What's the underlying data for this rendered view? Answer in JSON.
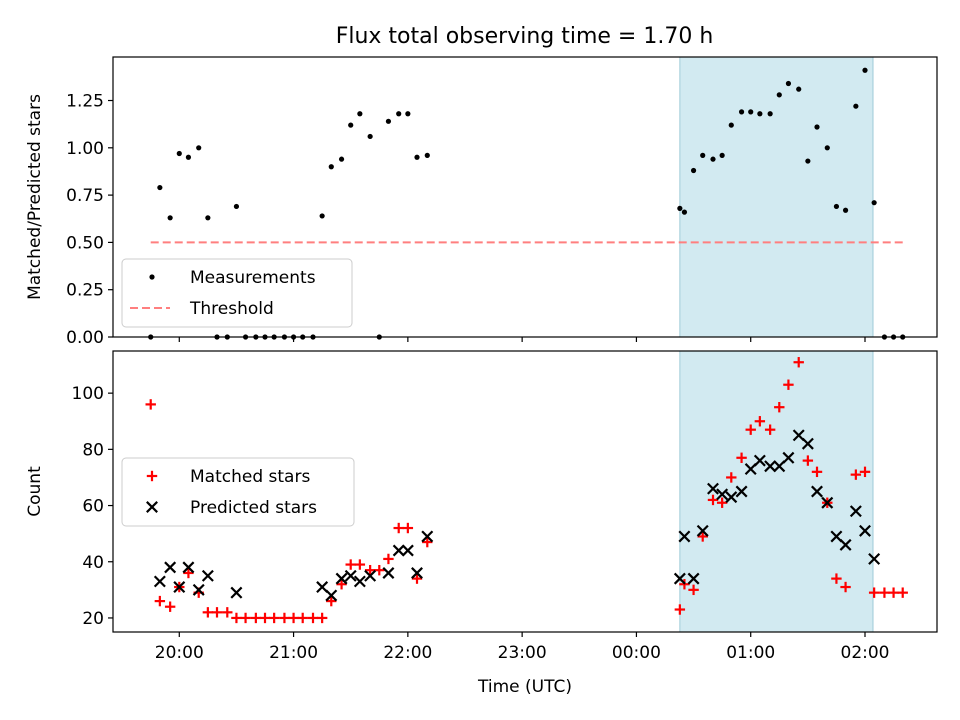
{
  "title": "Flux total observing time = 1.70 h",
  "shaded_color": "#add8e6",
  "chart_data": [
    {
      "type": "scatter",
      "ylabel": "Matched/Predicted stars",
      "xlabel": "",
      "x_unit": "hours (UTC, continuing past midnight)",
      "xlim": [
        19.42,
        26.63
      ],
      "ylim": [
        0,
        1.48
      ],
      "yticks": [
        0.0,
        0.25,
        0.5,
        0.75,
        1.0,
        1.25
      ],
      "ytick_labels": [
        "0.00",
        "0.25",
        "0.50",
        "0.75",
        "1.00",
        "1.25"
      ],
      "shaded_interval": [
        24.38,
        26.07
      ],
      "legend_position": "lower left",
      "series": [
        {
          "name": "Measurements",
          "marker": "dot",
          "color": "#000000",
          "points": [
            [
              19.75,
              0.0
            ],
            [
              19.83,
              0.79
            ],
            [
              19.92,
              0.63
            ],
            [
              20.0,
              0.97
            ],
            [
              20.08,
              0.95
            ],
            [
              20.17,
              1.0
            ],
            [
              20.25,
              0.63
            ],
            [
              20.33,
              0.0
            ],
            [
              20.42,
              0.0
            ],
            [
              20.5,
              0.69
            ],
            [
              20.58,
              0.0
            ],
            [
              20.67,
              0.0
            ],
            [
              20.75,
              0.0
            ],
            [
              20.83,
              0.0
            ],
            [
              20.92,
              0.0
            ],
            [
              21.0,
              0.0
            ],
            [
              21.08,
              0.0
            ],
            [
              21.17,
              0.0
            ],
            [
              21.25,
              0.64
            ],
            [
              21.33,
              0.9
            ],
            [
              21.42,
              0.94
            ],
            [
              21.5,
              1.12
            ],
            [
              21.58,
              1.18
            ],
            [
              21.67,
              1.06
            ],
            [
              21.75,
              0.0
            ],
            [
              21.83,
              1.14
            ],
            [
              21.92,
              1.18
            ],
            [
              22.0,
              1.18
            ],
            [
              22.08,
              0.95
            ],
            [
              22.17,
              0.96
            ],
            [
              24.38,
              0.68
            ],
            [
              24.42,
              0.66
            ],
            [
              24.5,
              0.88
            ],
            [
              24.58,
              0.96
            ],
            [
              24.67,
              0.94
            ],
            [
              24.75,
              0.96
            ],
            [
              24.83,
              1.12
            ],
            [
              24.92,
              1.19
            ],
            [
              25.0,
              1.19
            ],
            [
              25.08,
              1.18
            ],
            [
              25.17,
              1.18
            ],
            [
              25.25,
              1.28
            ],
            [
              25.33,
              1.34
            ],
            [
              25.42,
              1.31
            ],
            [
              25.5,
              0.93
            ],
            [
              25.58,
              1.11
            ],
            [
              25.67,
              1.0
            ],
            [
              25.75,
              0.69
            ],
            [
              25.83,
              0.67
            ],
            [
              25.92,
              1.22
            ],
            [
              26.0,
              1.41
            ],
            [
              26.08,
              0.71
            ],
            [
              26.17,
              0.0
            ],
            [
              26.25,
              0.0
            ],
            [
              26.33,
              0.0
            ]
          ]
        },
        {
          "name": "Threshold",
          "marker": "dashed-line",
          "color": "#ff7f7f",
          "points": [
            [
              19.75,
              0.5
            ],
            [
              26.33,
              0.5
            ]
          ]
        }
      ]
    },
    {
      "type": "scatter",
      "ylabel": "Count",
      "xlabel": "Time (UTC)",
      "x_unit": "hours (UTC, continuing past midnight)",
      "xlim": [
        19.42,
        26.63
      ],
      "ylim": [
        15,
        115
      ],
      "yticks": [
        20,
        40,
        60,
        80,
        100
      ],
      "ytick_labels": [
        "20",
        "40",
        "60",
        "80",
        "100"
      ],
      "xticks": [
        20,
        21,
        22,
        23,
        24,
        25,
        26
      ],
      "xtick_labels": [
        "20:00",
        "21:00",
        "22:00",
        "23:00",
        "00:00",
        "01:00",
        "02:00"
      ],
      "shaded_interval": [
        24.38,
        26.07
      ],
      "legend_position": "center left",
      "series": [
        {
          "name": "Matched stars",
          "marker": "plus",
          "color": "#ff0000",
          "points": [
            [
              19.75,
              96
            ],
            [
              19.83,
              26
            ],
            [
              19.92,
              24
            ],
            [
              20.0,
              31
            ],
            [
              20.08,
              36
            ],
            [
              20.17,
              29
            ],
            [
              20.25,
              22
            ],
            [
              20.33,
              22
            ],
            [
              20.42,
              22
            ],
            [
              20.5,
              20
            ],
            [
              20.58,
              20
            ],
            [
              20.67,
              20
            ],
            [
              20.75,
              20
            ],
            [
              20.83,
              20
            ],
            [
              20.92,
              20
            ],
            [
              21.0,
              20
            ],
            [
              21.08,
              20
            ],
            [
              21.17,
              20
            ],
            [
              21.25,
              20
            ],
            [
              21.33,
              26
            ],
            [
              21.42,
              32
            ],
            [
              21.5,
              39
            ],
            [
              21.58,
              39
            ],
            [
              21.67,
              37
            ],
            [
              21.75,
              37
            ],
            [
              21.83,
              41
            ],
            [
              21.92,
              52
            ],
            [
              22.0,
              52
            ],
            [
              22.08,
              34
            ],
            [
              22.17,
              47
            ],
            [
              24.38,
              23
            ],
            [
              24.42,
              32
            ],
            [
              24.5,
              30
            ],
            [
              24.58,
              49
            ],
            [
              24.67,
              62
            ],
            [
              24.75,
              61
            ],
            [
              24.83,
              70
            ],
            [
              24.92,
              77
            ],
            [
              25.0,
              87
            ],
            [
              25.08,
              90
            ],
            [
              25.17,
              87
            ],
            [
              25.25,
              95
            ],
            [
              25.33,
              103
            ],
            [
              25.42,
              111
            ],
            [
              25.5,
              76
            ],
            [
              25.58,
              72
            ],
            [
              25.67,
              61
            ],
            [
              25.75,
              34
            ],
            [
              25.83,
              31
            ],
            [
              25.92,
              71
            ],
            [
              26.0,
              72
            ],
            [
              26.08,
              29
            ],
            [
              26.17,
              29
            ],
            [
              26.25,
              29
            ],
            [
              26.33,
              29
            ]
          ]
        },
        {
          "name": "Predicted stars",
          "marker": "x",
          "color": "#000000",
          "points": [
            [
              19.83,
              33
            ],
            [
              19.92,
              38
            ],
            [
              20.0,
              31
            ],
            [
              20.08,
              38
            ],
            [
              20.17,
              30
            ],
            [
              20.25,
              35
            ],
            [
              20.5,
              29
            ],
            [
              21.25,
              31
            ],
            [
              21.33,
              28
            ],
            [
              21.42,
              34
            ],
            [
              21.5,
              35
            ],
            [
              21.58,
              33
            ],
            [
              21.67,
              35
            ],
            [
              21.83,
              36
            ],
            [
              21.92,
              44
            ],
            [
              22.0,
              44
            ],
            [
              22.08,
              36
            ],
            [
              22.17,
              49
            ],
            [
              24.38,
              34
            ],
            [
              24.42,
              49
            ],
            [
              24.5,
              34
            ],
            [
              24.58,
              51
            ],
            [
              24.67,
              66
            ],
            [
              24.75,
              64
            ],
            [
              24.83,
              63
            ],
            [
              24.92,
              65
            ],
            [
              25.0,
              73
            ],
            [
              25.08,
              76
            ],
            [
              25.17,
              74
            ],
            [
              25.25,
              74
            ],
            [
              25.33,
              77
            ],
            [
              25.42,
              85
            ],
            [
              25.5,
              82
            ],
            [
              25.58,
              65
            ],
            [
              25.67,
              61
            ],
            [
              25.75,
              49
            ],
            [
              25.83,
              46
            ],
            [
              25.92,
              58
            ],
            [
              26.0,
              51
            ],
            [
              26.08,
              41
            ]
          ]
        }
      ]
    }
  ]
}
